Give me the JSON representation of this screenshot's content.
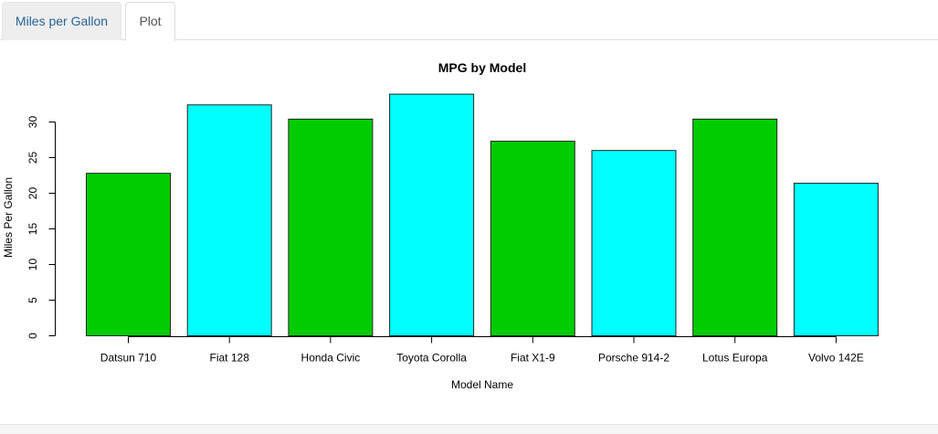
{
  "tabs": [
    {
      "label": "Miles per Gallon",
      "active": false
    },
    {
      "label": "Plot",
      "active": true
    }
  ],
  "chart_data": {
    "type": "bar",
    "title": "MPG by Model",
    "xlabel": "Model Name",
    "ylabel": "Miles Per Gallon",
    "categories": [
      "Datsun 710",
      "Fiat 128",
      "Honda Civic",
      "Toyota Corolla",
      "Fiat X1-9",
      "Porsche 914-2",
      "Lotus Europa",
      "Volvo 142E"
    ],
    "values": [
      22.8,
      32.4,
      30.4,
      33.9,
      27.3,
      26.0,
      30.4,
      21.4
    ],
    "colors": [
      "#00cd00",
      "#00ffff",
      "#00cd00",
      "#00ffff",
      "#00cd00",
      "#00ffff",
      "#00cd00",
      "#00ffff"
    ],
    "yticks": [
      0,
      5,
      10,
      15,
      20,
      25,
      30
    ],
    "ylim": [
      0,
      35
    ],
    "grid": false,
    "legend": "none"
  }
}
